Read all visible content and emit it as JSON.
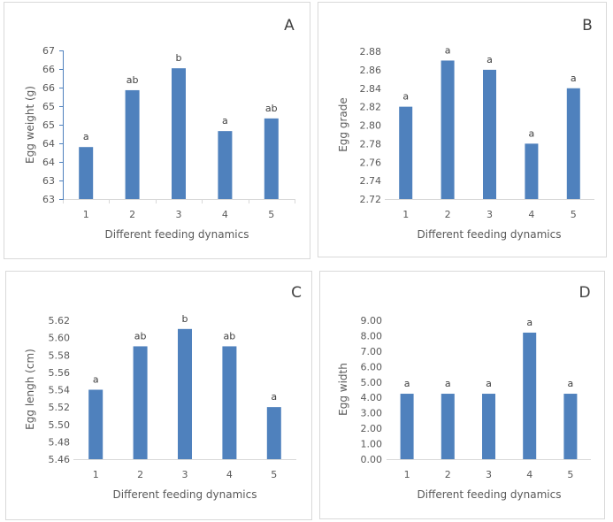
{
  "figure": {
    "panels": [
      "A",
      "B",
      "C",
      "D"
    ]
  },
  "colors": {
    "bar": "#4F81BD",
    "axis_line_blue": "#4F81BD",
    "gridline": "#D9D9D9",
    "text": "#595959",
    "panel_border": "#D9D9D9"
  },
  "chart_data": [
    {
      "id": "A",
      "type": "bar",
      "panel_letter": "A",
      "title": "",
      "xlabel": "Different feeding dynamics",
      "ylabel": "Egg weight (g)",
      "categories": [
        "1",
        "2",
        "3",
        "4",
        "5"
      ],
      "values": [
        64.4,
        65.93,
        66.52,
        64.83,
        65.17
      ],
      "significance_labels": [
        "a",
        "ab",
        "b",
        "a",
        "ab"
      ],
      "ylim": [
        63,
        67
      ],
      "yticks": [
        63,
        63.5,
        64,
        64.5,
        65,
        65.5,
        66,
        66.5,
        67
      ],
      "ytick_labels": [
        "63",
        "63",
        "64",
        "64",
        "65",
        "65",
        "66",
        "66",
        "67"
      ],
      "grid": false
    },
    {
      "id": "B",
      "type": "bar",
      "panel_letter": "B",
      "title": "",
      "xlabel": "Different feeding dynamics",
      "ylabel": "Egg  grade",
      "categories": [
        "1",
        "2",
        "3",
        "4",
        "5"
      ],
      "values": [
        2.82,
        2.87,
        2.86,
        2.78,
        2.84
      ],
      "significance_labels": [
        "a",
        "a",
        "a",
        "a",
        "a"
      ],
      "ylim": [
        2.72,
        2.88
      ],
      "yticks": [
        2.72,
        2.74,
        2.76,
        2.78,
        2.8,
        2.82,
        2.84,
        2.86,
        2.88
      ],
      "ytick_labels": [
        "2.72",
        "2.74",
        "2.76",
        "2.78",
        "2.80",
        "2.82",
        "2.84",
        "2.86",
        "2.88"
      ],
      "grid": false
    },
    {
      "id": "C",
      "type": "bar",
      "panel_letter": "C",
      "title": "",
      "xlabel": "Different feeding dynamics",
      "ylabel": "Egg  lengh (cm)",
      "categories": [
        "1",
        "2",
        "3",
        "4",
        "5"
      ],
      "values": [
        5.54,
        5.59,
        5.61,
        5.59,
        5.52
      ],
      "significance_labels": [
        "a",
        "ab",
        "b",
        "ab",
        "a"
      ],
      "ylim": [
        5.46,
        5.62
      ],
      "yticks": [
        5.46,
        5.48,
        5.5,
        5.52,
        5.54,
        5.56,
        5.58,
        5.6,
        5.62
      ],
      "ytick_labels": [
        "5.46",
        "5.48",
        "5.50",
        "5.52",
        "5.54",
        "5.56",
        "5.58",
        "5.60",
        "5.62"
      ],
      "grid": false
    },
    {
      "id": "D",
      "type": "bar",
      "panel_letter": "D",
      "title": "",
      "xlabel": "Different feeding dynamics",
      "ylabel": "Egg  width",
      "categories": [
        "1",
        "2",
        "3",
        "4",
        "5"
      ],
      "values": [
        4.24,
        4.24,
        4.24,
        8.2,
        4.24
      ],
      "significance_labels": [
        "a",
        "a",
        "a",
        "a",
        "a"
      ],
      "ylim": [
        0,
        9
      ],
      "yticks": [
        0,
        1,
        2,
        3,
        4,
        5,
        6,
        7,
        8,
        9
      ],
      "ytick_labels": [
        "0.00",
        "1.00",
        "2.00",
        "3.00",
        "4.00",
        "5.00",
        "6.00",
        "7.00",
        "8.00",
        "9.00"
      ],
      "grid": false
    }
  ]
}
